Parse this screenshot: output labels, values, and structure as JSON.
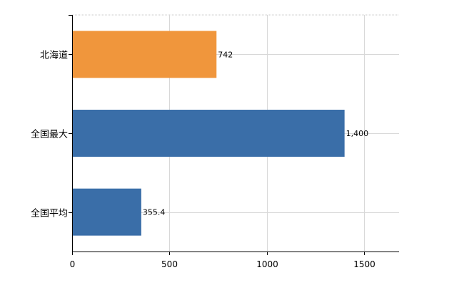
{
  "chart_data": {
    "type": "bar",
    "orientation": "horizontal",
    "categories": [
      "北海道",
      "全国最大",
      "全国平均"
    ],
    "values": [
      742,
      1400,
      355.4
    ],
    "value_labels": [
      "742",
      "1,400",
      "355.4"
    ],
    "bar_colors": [
      "#f0963c",
      "#3a6ea8",
      "#3a6ea8"
    ],
    "xlim": [
      0,
      1680
    ],
    "xticks": [
      0,
      500,
      1000,
      1500
    ],
    "grid": true,
    "title": "",
    "xlabel": "",
    "ylabel": ""
  }
}
